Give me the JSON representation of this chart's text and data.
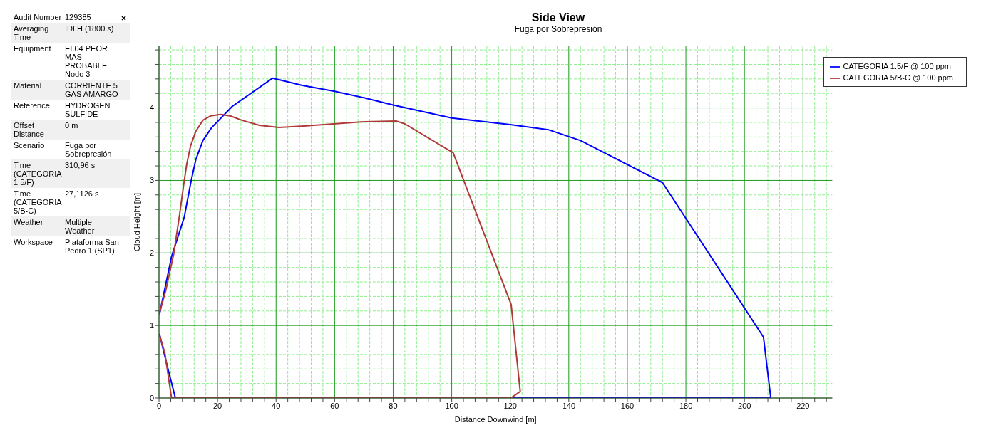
{
  "chart_data": {
    "type": "line",
    "title": "Side View",
    "subtitle": "Fuga por Sobrepresión",
    "xlabel": "Distance Downwind [m]",
    "ylabel": "Cloud Height [m]",
    "annotations": [
      "Audit Number",
      "129385",
      "Averaging Time",
      "IDLH (1800 s)",
      "Equipment",
      "EI.04 PEOR MAS PROBABLE Nodo 3",
      "Material",
      "CORRIENTE 5 GAS AMARGO",
      "Reference",
      "HYDROGEN SULFIDE",
      "Offset Distance",
      "0 m",
      "Scenario",
      "Fuga por Sobrepresión",
      "Time (CATEGORIA 1.5/F)",
      "310,96 s",
      "Time (CATEGORIA 5/B-C)",
      "27,1126 s",
      "Weather",
      "Multiple Weather",
      "Workspace",
      "Plataforma San Pedro 1 (SP1)"
    ],
    "series": [
      {
        "name": "CATEGORIA 1.5/F @ 100 ppm",
        "color": "#0000ff",
        "x": [
          0,
          0.3,
          4.3,
          8.6,
          11,
          12.6,
          15,
          18,
          25,
          38.8,
          49,
          60,
          70,
          80,
          100,
          120,
          133,
          144,
          172,
          206.5,
          209,
          5.6,
          3,
          0.3,
          0
        ],
        "values": [
          1.16,
          1.18,
          1.95,
          2.49,
          3.0,
          3.29,
          3.55,
          3.73,
          4.02,
          4.41,
          4.31,
          4.23,
          4.14,
          4.04,
          3.86,
          3.77,
          3.7,
          3.55,
          2.97,
          0.84,
          0,
          0,
          0.41,
          0.86,
          0.88
        ]
      },
      {
        "name": "CATEGORIA 5/B-C @ 100 ppm",
        "color": "#b03a3a",
        "x": [
          0,
          2.3,
          5,
          7,
          8.6,
          9.5,
          10.8,
          12.6,
          15,
          17.6,
          21,
          24.3,
          28.3,
          34.3,
          41,
          49.6,
          59.6,
          70.3,
          81,
          84,
          100.5,
          120.3,
          123.4,
          120.2,
          4.5,
          4.2,
          2,
          0.3,
          0
        ],
        "values": [
          1.15,
          1.48,
          1.98,
          2.52,
          2.99,
          3.23,
          3.48,
          3.68,
          3.83,
          3.89,
          3.91,
          3.89,
          3.83,
          3.76,
          3.73,
          3.75,
          3.78,
          3.81,
          3.82,
          3.78,
          3.38,
          1.29,
          0.09,
          0,
          0,
          0.02,
          0.62,
          0.85,
          0.86
        ]
      }
    ],
    "xlim": [
      0,
      230
    ],
    "ylim": [
      0,
      4.85
    ],
    "xticks": [
      0,
      {
        "value": 4,
        "label": null
      },
      {
        "value": 8,
        "label": null
      },
      {
        "value": 12,
        "label": null
      },
      {
        "value": 16,
        "label": null
      },
      20,
      {
        "value": 24,
        "label": null
      },
      {
        "value": 28,
        "label": null
      },
      {
        "value": 32,
        "label": null
      },
      {
        "value": 36,
        "label": null
      },
      40,
      {
        "value": 44,
        "label": null
      },
      {
        "value": 48,
        "label": null
      },
      {
        "value": 52,
        "label": null
      },
      {
        "value": 56,
        "label": null
      },
      60,
      {
        "value": 64,
        "label": null
      },
      {
        "value": 68,
        "label": null
      },
      {
        "value": 72,
        "label": null
      },
      {
        "value": 76,
        "label": null
      },
      80,
      {
        "value": 84,
        "label": null
      },
      {
        "value": 88,
        "label": null
      },
      {
        "value": 92,
        "label": null
      },
      {
        "value": 96,
        "label": null
      },
      100,
      {
        "value": 104,
        "label": null
      },
      {
        "value": 108,
        "label": null
      },
      {
        "value": 112,
        "label": null
      },
      {
        "value": 116,
        "label": null
      },
      120,
      {
        "value": 124,
        "label": null
      },
      {
        "value": 128,
        "label": null
      },
      {
        "value": 132,
        "label": null
      },
      {
        "value": 136,
        "label": null
      },
      140,
      {
        "value": 144,
        "label": null
      },
      {
        "value": 148,
        "label": null
      },
      {
        "value": 152,
        "label": null
      },
      {
        "value": 156,
        "label": null
      },
      160,
      {
        "value": 164,
        "label": null
      },
      {
        "value": 168,
        "label": null
      },
      {
        "value": 172,
        "label": null
      },
      {
        "value": 176,
        "label": null
      },
      180,
      {
        "value": 184,
        "label": null
      },
      {
        "value": 188,
        "label": null
      },
      {
        "value": 192,
        "label": null
      },
      {
        "value": 196,
        "label": null
      },
      200,
      {
        "value": 204,
        "label": null
      },
      {
        "value": 208,
        "label": null
      },
      {
        "value": 212,
        "label": null
      },
      {
        "value": 216,
        "label": null
      },
      220,
      {
        "value": 224,
        "label": null
      },
      {
        "value": 228,
        "label": null
      }
    ],
    "yticks": [
      0,
      {
        "value": 0.2,
        "label": null
      },
      {
        "value": 0.4,
        "label": null
      },
      {
        "value": 0.6,
        "label": null
      },
      {
        "value": 0.8,
        "label": null
      },
      1,
      {
        "value": 1.2,
        "label": null
      },
      {
        "value": 1.4,
        "label": null
      },
      {
        "value": 1.6,
        "label": null
      },
      {
        "value": 1.8,
        "label": null
      },
      2,
      {
        "value": 2.2,
        "label": null
      },
      {
        "value": 2.4,
        "label": null
      },
      {
        "value": 2.6,
        "label": null
      },
      {
        "value": 2.8,
        "label": null
      },
      3,
      {
        "value": 3.2,
        "label": null
      },
      {
        "value": 3.4,
        "label": null
      },
      {
        "value": 3.6,
        "label": null
      },
      {
        "value": 3.8,
        "label": null
      },
      4,
      {
        "value": 4.2,
        "label": null
      },
      {
        "value": 4.4,
        "label": null
      },
      {
        "value": 4.6,
        "label": null
      },
      {
        "value": 4.8,
        "label": null
      }
    ],
    "grid": true,
    "legend": "top right",
    "marker": "none",
    "line_style": "solid"
  }
}
